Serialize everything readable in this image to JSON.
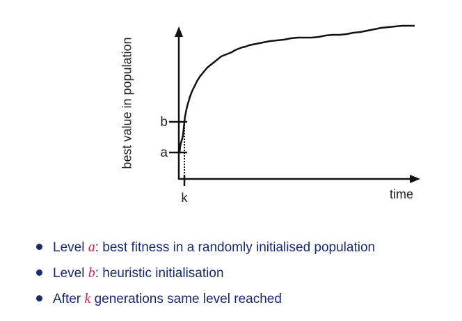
{
  "chart_data": {
    "type": "line",
    "xlabel": "time",
    "ylabel": "best value in population",
    "y_markers": [
      "a",
      "b"
    ],
    "x_markers": [
      "k"
    ],
    "series": [
      {
        "x": [
          0,
          0.5,
          1,
          2,
          3,
          4,
          5,
          6,
          7,
          8,
          10,
          12,
          15,
          18,
          22,
          26,
          30,
          35,
          40,
          45,
          50,
          55,
          60,
          65,
          70,
          75,
          80,
          85,
          90,
          95,
          100,
          110,
          120,
          130,
          140,
          150,
          160,
          170,
          180,
          190,
          200,
          210,
          220,
          230,
          240,
          250,
          260,
          270,
          280,
          290,
          300,
          310,
          320,
          330,
          338
        ],
        "y": [
          38,
          42,
          47,
          52,
          55,
          58,
          63,
          72,
          82,
          90,
          100,
          108,
          118,
          126,
          134,
          142,
          148,
          154,
          160,
          164,
          168,
          172,
          176,
          178,
          180,
          182,
          185,
          187,
          189,
          190,
          192,
          194,
          196,
          198,
          199,
          200,
          202,
          203,
          203,
          203,
          204,
          206,
          207,
          207,
          208,
          210,
          211,
          213,
          215,
          217,
          218,
          219,
          220,
          220,
          220
        ]
      }
    ],
    "grid": false,
    "legend": "none"
  },
  "bullets": [
    {
      "prefix": "Level ",
      "var": "a",
      "suffix": ": best fitness in a randomly initialised population"
    },
    {
      "prefix": "Level ",
      "var": "b",
      "suffix": ": heuristic initialisation"
    },
    {
      "prefix": "After ",
      "var": "k",
      "suffix": " generations same level reached"
    }
  ],
  "colors": {
    "text": "#1a2a6c",
    "variable": "#d0205a",
    "axis": "#111111"
  }
}
